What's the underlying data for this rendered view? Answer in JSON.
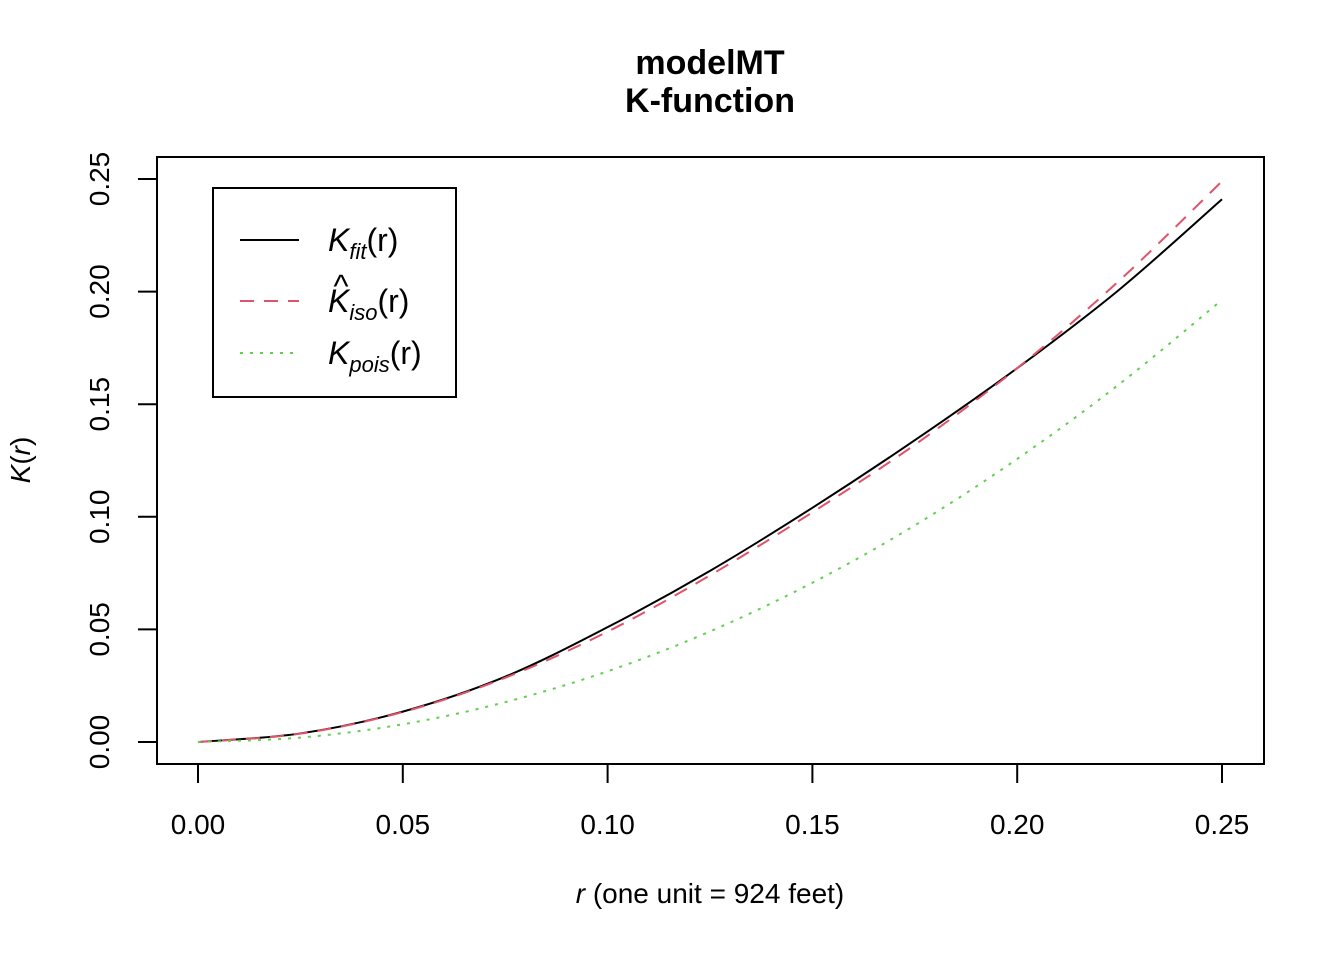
{
  "chart_data": {
    "type": "line",
    "title": "modelMT",
    "subtitle": "K-function",
    "xlabel": {
      "var": "r",
      "text": " (one unit = 924 feet)"
    },
    "ylabel": {
      "fn": "K",
      "open": "(",
      "var": "r",
      "close": ")"
    },
    "xlim": [
      0.0,
      0.25
    ],
    "ylim": [
      0.0,
      0.25
    ],
    "xticks": [
      "0.00",
      "0.05",
      "0.10",
      "0.15",
      "0.20",
      "0.25"
    ],
    "yticks": [
      "0.00",
      "0.05",
      "0.10",
      "0.15",
      "0.20",
      "0.25"
    ],
    "grid": false,
    "legend": {
      "position": "top-left"
    },
    "x": [
      0,
      0.025,
      0.05,
      0.075,
      0.1,
      0.125,
      0.15,
      0.175,
      0.2,
      0.225,
      0.25
    ],
    "series": [
      {
        "name": {
          "main": "K",
          "sub": "fit",
          "hat": "",
          "arg": "(r)"
        },
        "color": "#000000",
        "dash": "solid",
        "values": [
          0,
          0.0038,
          0.0135,
          0.029,
          0.051,
          0.076,
          0.104,
          0.134,
          0.166,
          0.201,
          0.241
        ]
      },
      {
        "name": {
          "main": "K",
          "sub": "iso",
          "hat": "^",
          "arg": "(r)"
        },
        "color": "#df536b",
        "dash": "dashed",
        "values": [
          0,
          0.0037,
          0.0133,
          0.0285,
          0.049,
          0.074,
          0.102,
          0.132,
          0.166,
          0.205,
          0.249
        ]
      },
      {
        "name": {
          "main": "K",
          "sub": "pois",
          "hat": "",
          "arg": "(r)"
        },
        "color": "#61d04f",
        "dash": "dotted",
        "values": [
          0,
          0.00196,
          0.00785,
          0.0177,
          0.0314,
          0.0491,
          0.0707,
          0.0962,
          0.1257,
          0.159,
          0.1963
        ]
      }
    ]
  }
}
